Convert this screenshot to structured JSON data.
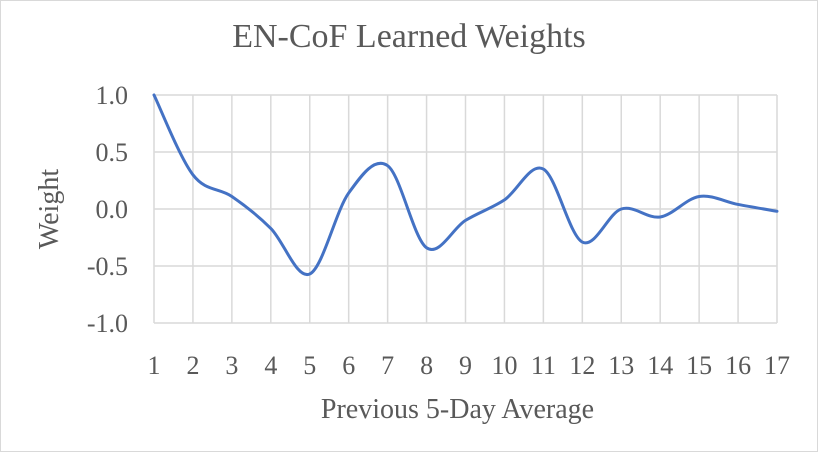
{
  "chart_data": {
    "type": "line",
    "title": "EN-CoF Learned Weights",
    "xlabel": "Previous 5-Day Average",
    "ylabel": "Weight",
    "x": [
      1,
      2,
      3,
      4,
      5,
      6,
      7,
      8,
      9,
      10,
      11,
      12,
      13,
      14,
      15,
      16,
      17
    ],
    "categories": [
      "1",
      "2",
      "3",
      "4",
      "5",
      "6",
      "7",
      "8",
      "9",
      "10",
      "11",
      "12",
      "13",
      "14",
      "15",
      "16",
      "17"
    ],
    "series": [
      {
        "values": [
          1.0,
          0.3,
          0.11,
          -0.17,
          -0.57,
          0.14,
          0.38,
          -0.34,
          -0.1,
          0.08,
          0.35,
          -0.29,
          0.0,
          -0.07,
          0.11,
          0.04,
          -0.02
        ],
        "color": "#4472c4"
      }
    ],
    "yticks": [
      "1.0",
      "0.5",
      "0.0",
      "-0.5",
      "-1.0"
    ],
    "ytick_values": [
      1.0,
      0.5,
      0.0,
      -0.5,
      -1.0
    ],
    "ylim": [
      -1.0,
      1.0
    ],
    "xlim": [
      1,
      17
    ],
    "grid": true,
    "legend": "none",
    "colors": {
      "line": "#4472c4",
      "grid": "#d9d9d9",
      "text": "#595959"
    }
  }
}
